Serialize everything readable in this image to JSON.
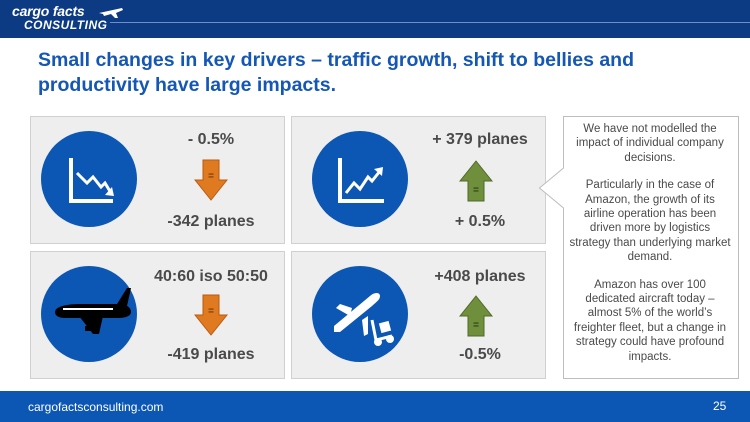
{
  "header": {
    "logo_line1": "cargo facts",
    "logo_line2": "CONSULTING",
    "logo_icon": "plane-icon"
  },
  "title": "Small changes in key drivers – traffic growth, shift to bellies and productivity have large impacts.",
  "panels": [
    {
      "icon": "declining-chart-icon",
      "change": "- 0.5%",
      "planes": "-342 planes",
      "direction": "down",
      "arrow_color": "#e07a20"
    },
    {
      "icon": "rising-chart-icon",
      "change": "+ 0.5%",
      "planes": "+ 379 planes",
      "direction": "up",
      "arrow_color": "#6f8f3c"
    },
    {
      "icon": "widebody-aircraft-icon",
      "change": "40:60 iso 50:50",
      "planes": "-419 planes",
      "direction": "down",
      "arrow_color": "#e07a20"
    },
    {
      "icon": "plane-cargo-cart-icon",
      "change": "-0.5%",
      "planes": "+408 planes",
      "direction": "up",
      "arrow_color": "#6f8f3c"
    }
  ],
  "arrow_marks": [
    "=",
    "=",
    "=",
    "="
  ],
  "callout": {
    "paragraphs": [
      "We have not modelled the impact of individual company decisions.",
      "Particularly in the case of Amazon, the growth of its airline operation has been driven more by logistics strategy than underlying market demand.",
      "Amazon has over 100 dedicated aircraft today – almost 5% of the world’s freighter fleet, but a change in strategy could have profound impacts."
    ]
  },
  "footer": {
    "url": "cargofactsconsulting.com",
    "page_number": "25"
  },
  "colors": {
    "brand_blue": "#0c57b3",
    "dark_blue": "#0c3a83",
    "down_arrow": "#e07a20",
    "up_arrow": "#6f8f3c"
  }
}
